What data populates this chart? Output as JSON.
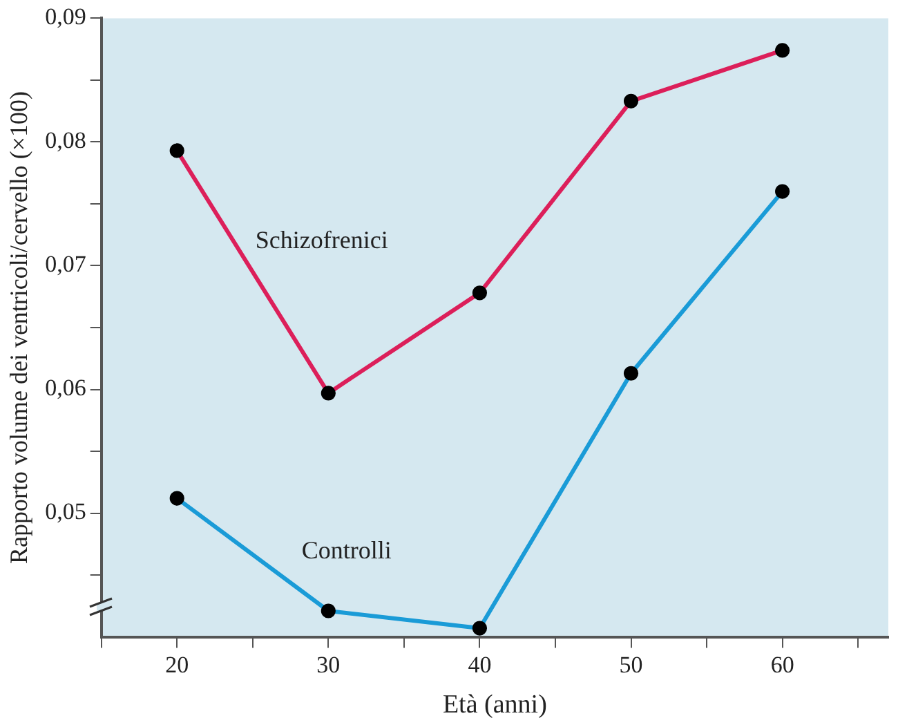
{
  "chart_data": {
    "type": "line",
    "xlabel": "Età (anni)",
    "ylabel": "Rapporto volume dei ventricoli/cervello (×100)",
    "x": [
      20,
      30,
      40,
      50,
      60
    ],
    "series": [
      {
        "name": "Schizofrenici",
        "color": "#dc1f5a",
        "values": [
          0.0793,
          0.0597,
          0.0678,
          0.0833,
          0.0874
        ]
      },
      {
        "name": "Controlli",
        "color": "#1a9bd7",
        "values": [
          0.0512,
          0.0421,
          0.0407,
          0.0613,
          0.076
        ]
      }
    ],
    "xlim": [
      15,
      67
    ],
    "xticks": [
      {
        "value": 15,
        "label": null
      },
      20,
      {
        "value": 25,
        "label": null
      },
      30,
      {
        "value": 35,
        "label": null
      },
      40,
      {
        "value": 45,
        "label": null
      },
      50,
      {
        "value": 55,
        "label": null
      },
      60,
      {
        "value": 65,
        "label": null
      }
    ],
    "ylim": [
      0.04,
      0.09
    ],
    "yticks": [
      {
        "value": 0.045,
        "label": null
      },
      {
        "value": 0.05,
        "label": "0,05"
      },
      {
        "value": 0.055,
        "label": null
      },
      {
        "value": 0.06,
        "label": "0,06"
      },
      {
        "value": 0.065,
        "label": null
      },
      {
        "value": 0.07,
        "label": "0,07"
      },
      {
        "value": 0.075,
        "label": null
      },
      {
        "value": 0.08,
        "label": "0,08"
      },
      {
        "value": 0.085,
        "label": null
      },
      {
        "value": 0.09,
        "label": "0,09"
      }
    ],
    "grid": false,
    "legend": false,
    "marker": "circle",
    "line_style": "solid"
  }
}
